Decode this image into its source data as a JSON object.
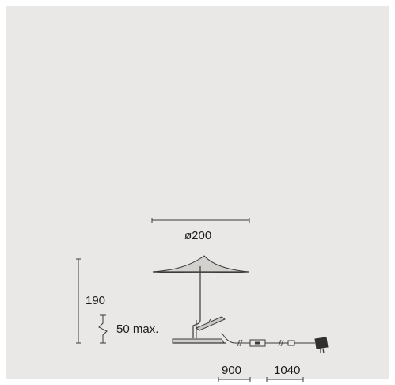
{
  "dimensions": {
    "shade_diameter": "ø200",
    "height": "190",
    "clamp_range": "50 max.",
    "cable_length_1": "900",
    "cable_length_2": "1040"
  },
  "colors": {
    "background": "#e9e8e6",
    "line": "#3a3a3a"
  }
}
